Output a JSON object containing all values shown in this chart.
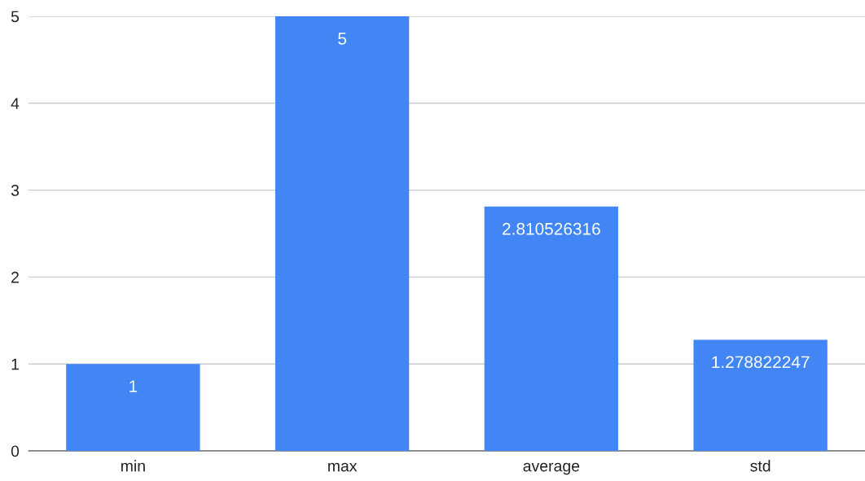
{
  "chart_data": {
    "type": "bar",
    "categories": [
      "min",
      "max",
      "average",
      "std"
    ],
    "values": [
      1,
      5,
      2.810526316,
      1.278822247
    ],
    "color": "#4285f4",
    "ylim": [
      0,
      5
    ],
    "yticks": [
      0,
      1,
      2,
      3,
      4,
      5
    ],
    "grid": "y",
    "data_labels": true
  }
}
